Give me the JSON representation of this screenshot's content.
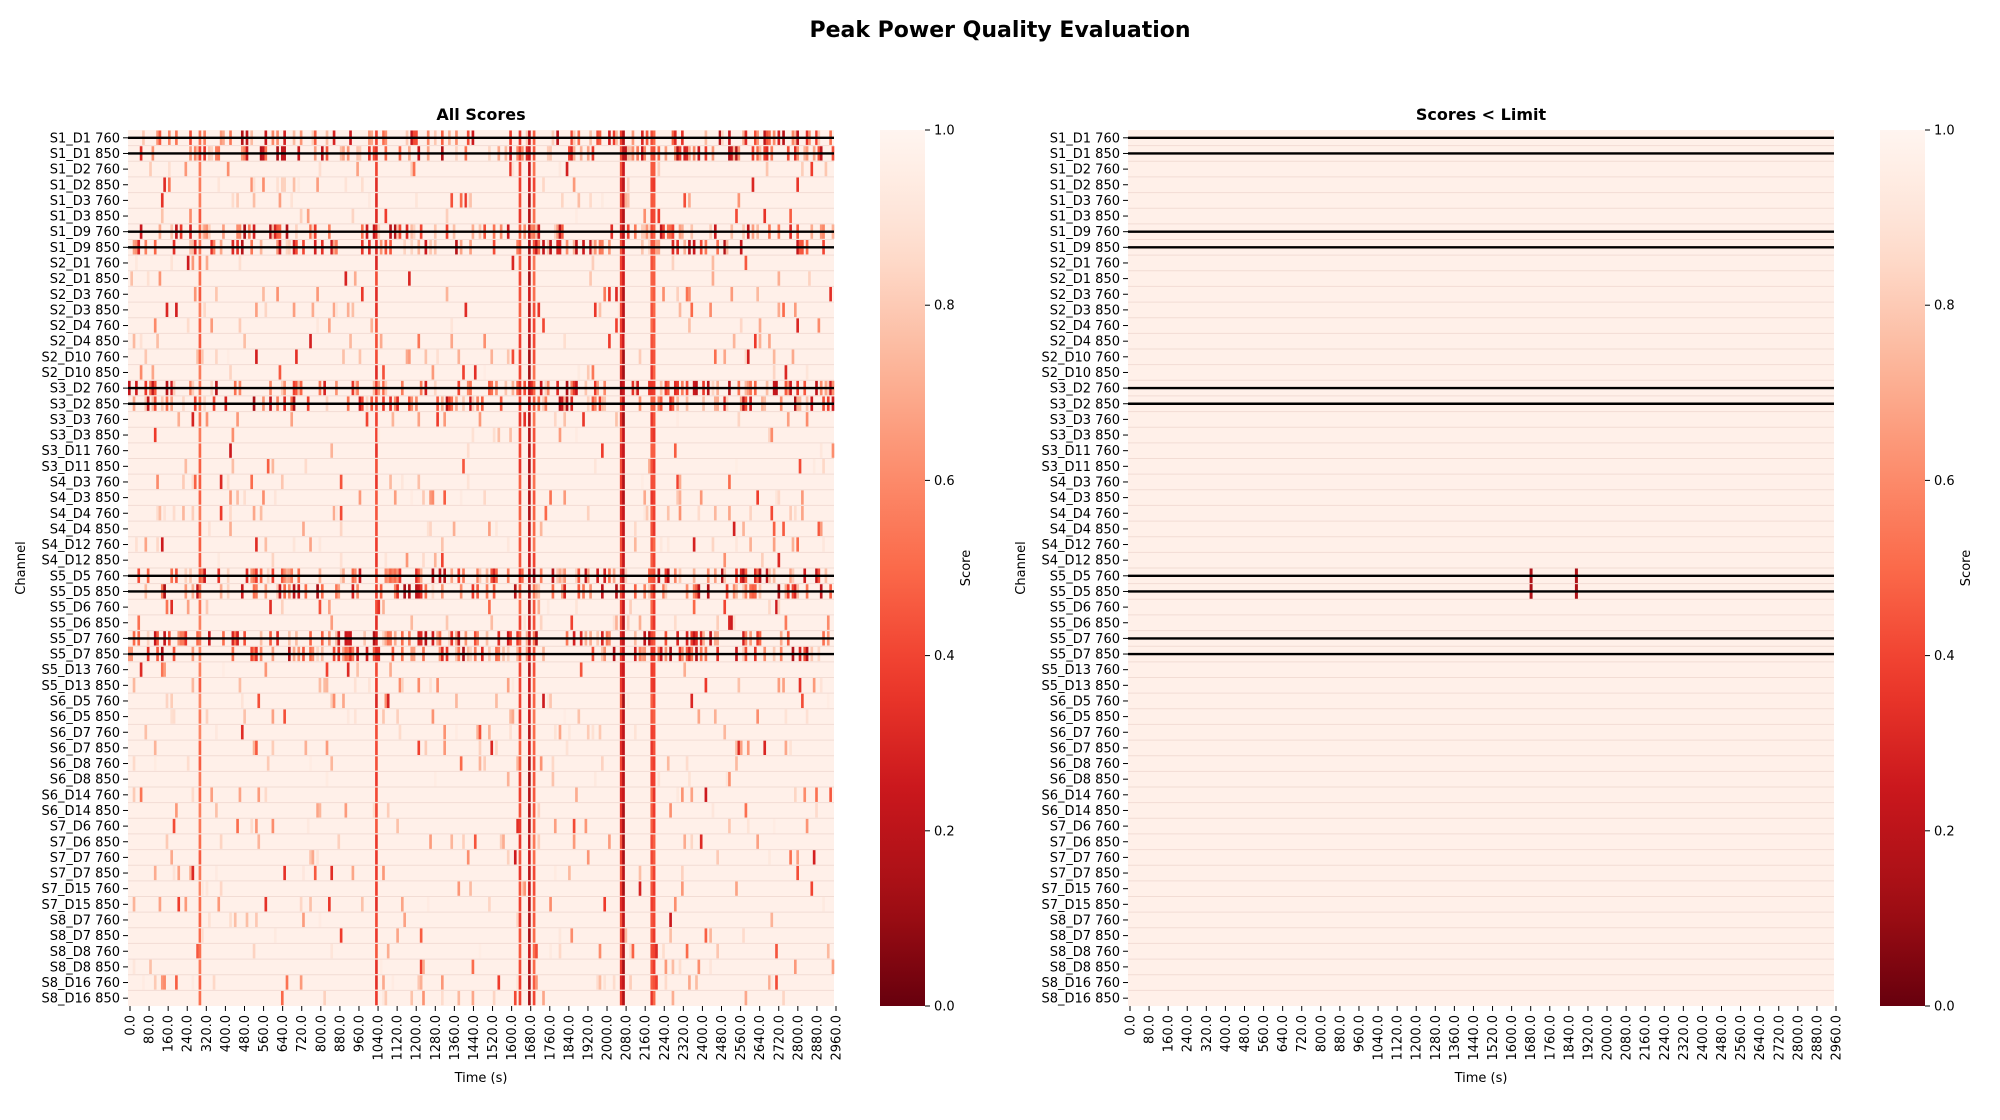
{
  "figure": {
    "title": "Peak Power Quality Evaluation"
  },
  "chart_data": [
    {
      "type": "heatmap",
      "title": "All Scores",
      "xlabel": "Time (s)",
      "ylabel": "Channel",
      "colorbar_label": "Score",
      "colormap": "Reds_r",
      "vmin": 0.0,
      "vmax": 1.0,
      "colorbar_ticks": [
        "0.0",
        "0.2",
        "0.4",
        "0.6",
        "0.8",
        "1.0"
      ],
      "x_ticks": [
        "0.0",
        "80.0",
        "160.0",
        "240.0",
        "320.0",
        "400.0",
        "480.0",
        "560.0",
        "640.0",
        "720.0",
        "800.0",
        "880.0",
        "960.0",
        "1040.0",
        "1120.0",
        "1200.0",
        "1280.0",
        "1360.0",
        "1440.0",
        "1520.0",
        "1600.0",
        "1680.0",
        "1760.0",
        "1840.0",
        "1920.0",
        "2000.0",
        "2080.0",
        "2160.0",
        "2240.0",
        "2320.0",
        "2400.0",
        "2480.0",
        "2560.0",
        "2640.0",
        "2720.0",
        "2800.0",
        "2880.0",
        "2960.0"
      ],
      "x_range": [
        0,
        2960
      ],
      "channels": [
        "S1_D1 760",
        "S1_D1 850",
        "S1_D2 760",
        "S1_D2 850",
        "S1_D3 760",
        "S1_D3 850",
        "S1_D9 760",
        "S1_D9 850",
        "S2_D1 760",
        "S2_D1 850",
        "S2_D3 760",
        "S2_D3 850",
        "S2_D4 760",
        "S2_D4 850",
        "S2_D10 760",
        "S2_D10 850",
        "S3_D2 760",
        "S3_D2 850",
        "S3_D3 760",
        "S3_D3 850",
        "S3_D11 760",
        "S3_D11 850",
        "S4_D3 760",
        "S4_D3 850",
        "S4_D4 760",
        "S4_D4 850",
        "S4_D12 760",
        "S4_D12 850",
        "S5_D5 760",
        "S5_D5 850",
        "S5_D6 760",
        "S5_D6 850",
        "S5_D7 760",
        "S5_D7 850",
        "S5_D13 760",
        "S5_D13 850",
        "S6_D5 760",
        "S6_D5 850",
        "S6_D7 760",
        "S6_D7 850",
        "S6_D8 760",
        "S6_D8 850",
        "S6_D14 760",
        "S6_D14 850",
        "S7_D6 760",
        "S7_D6 850",
        "S7_D7 760",
        "S7_D7 850",
        "S7_D15 760",
        "S7_D15 850",
        "S8_D7 760",
        "S8_D7 850",
        "S8_D8 760",
        "S8_D8 850",
        "S8_D16 760",
        "S8_D16 850"
      ],
      "bad_channels": [
        "S1_D1 760",
        "S1_D1 850",
        "S1_D9 760",
        "S1_D9 850",
        "S3_D2 760",
        "S3_D2 850",
        "S5_D5 760",
        "S5_D5 850",
        "S5_D7 760",
        "S5_D7 850"
      ],
      "global_low_columns": [
        {
          "time": 300,
          "score": 0.45
        },
        {
          "time": 1040,
          "score": 0.3
        },
        {
          "time": 1640,
          "score": 0.35
        },
        {
          "time": 1680,
          "score": 0.12
        },
        {
          "time": 1700,
          "score": 0.4
        },
        {
          "time": 2070,
          "score": 0.3
        },
        {
          "time": 2080,
          "score": 0.12
        },
        {
          "time": 2200,
          "score": 0.35
        }
      ]
    },
    {
      "type": "heatmap",
      "title": "Scores < Limit",
      "xlabel": "Time (s)",
      "ylabel": "Channel",
      "colorbar_label": "Score",
      "colormap": "Reds_r",
      "vmin": 0.0,
      "vmax": 1.0,
      "colorbar_ticks": [
        "0.0",
        "0.2",
        "0.4",
        "0.6",
        "0.8",
        "1.0"
      ],
      "x_ticks": [
        "0.0",
        "80.0",
        "160.0",
        "240.0",
        "320.0",
        "400.0",
        "480.0",
        "560.0",
        "640.0",
        "720.0",
        "800.0",
        "880.0",
        "960.0",
        "1040.0",
        "1120.0",
        "1200.0",
        "1280.0",
        "1360.0",
        "1440.0",
        "1520.0",
        "1600.0",
        "1680.0",
        "1760.0",
        "1840.0",
        "1920.0",
        "2000.0",
        "2080.0",
        "2160.0",
        "2240.0",
        "2320.0",
        "2400.0",
        "2480.0",
        "2560.0",
        "2640.0",
        "2720.0",
        "2800.0",
        "2880.0",
        "2960.0"
      ],
      "x_range": [
        0,
        2960
      ],
      "channels": [
        "S1_D1 760",
        "S1_D1 850",
        "S1_D2 760",
        "S1_D2 850",
        "S1_D3 760",
        "S1_D3 850",
        "S1_D9 760",
        "S1_D9 850",
        "S2_D1 760",
        "S2_D1 850",
        "S2_D3 760",
        "S2_D3 850",
        "S2_D4 760",
        "S2_D4 850",
        "S2_D10 760",
        "S2_D10 850",
        "S3_D2 760",
        "S3_D2 850",
        "S3_D3 760",
        "S3_D3 850",
        "S3_D11 760",
        "S3_D11 850",
        "S4_D3 760",
        "S4_D3 850",
        "S4_D4 760",
        "S4_D4 850",
        "S4_D12 760",
        "S4_D12 850",
        "S5_D5 760",
        "S5_D5 850",
        "S5_D6 760",
        "S5_D6 850",
        "S5_D7 760",
        "S5_D7 850",
        "S5_D13 760",
        "S5_D13 850",
        "S6_D5 760",
        "S6_D5 850",
        "S6_D7 760",
        "S6_D7 850",
        "S6_D8 760",
        "S6_D8 850",
        "S6_D14 760",
        "S6_D14 850",
        "S7_D6 760",
        "S7_D6 850",
        "S7_D7 760",
        "S7_D7 850",
        "S7_D15 760",
        "S7_D15 850",
        "S8_D7 760",
        "S8_D7 850",
        "S8_D8 760",
        "S8_D8 850",
        "S8_D16 760",
        "S8_D16 850"
      ],
      "bad_channels": [
        "S1_D1 760",
        "S1_D1 850",
        "S1_D9 760",
        "S1_D9 850",
        "S3_D2 760",
        "S3_D2 850",
        "S5_D5 760",
        "S5_D5 850",
        "S5_D7 760",
        "S5_D7 850"
      ],
      "below_limit_cells": [
        {
          "channel": "S5_D5 760",
          "time": 1690,
          "score": 0.15
        },
        {
          "channel": "S5_D5 850",
          "time": 1690,
          "score": 0.15
        },
        {
          "channel": "S5_D5 760",
          "time": 1880,
          "score": 0.15
        },
        {
          "channel": "S5_D5 850",
          "time": 1880,
          "score": 0.15
        }
      ]
    }
  ]
}
